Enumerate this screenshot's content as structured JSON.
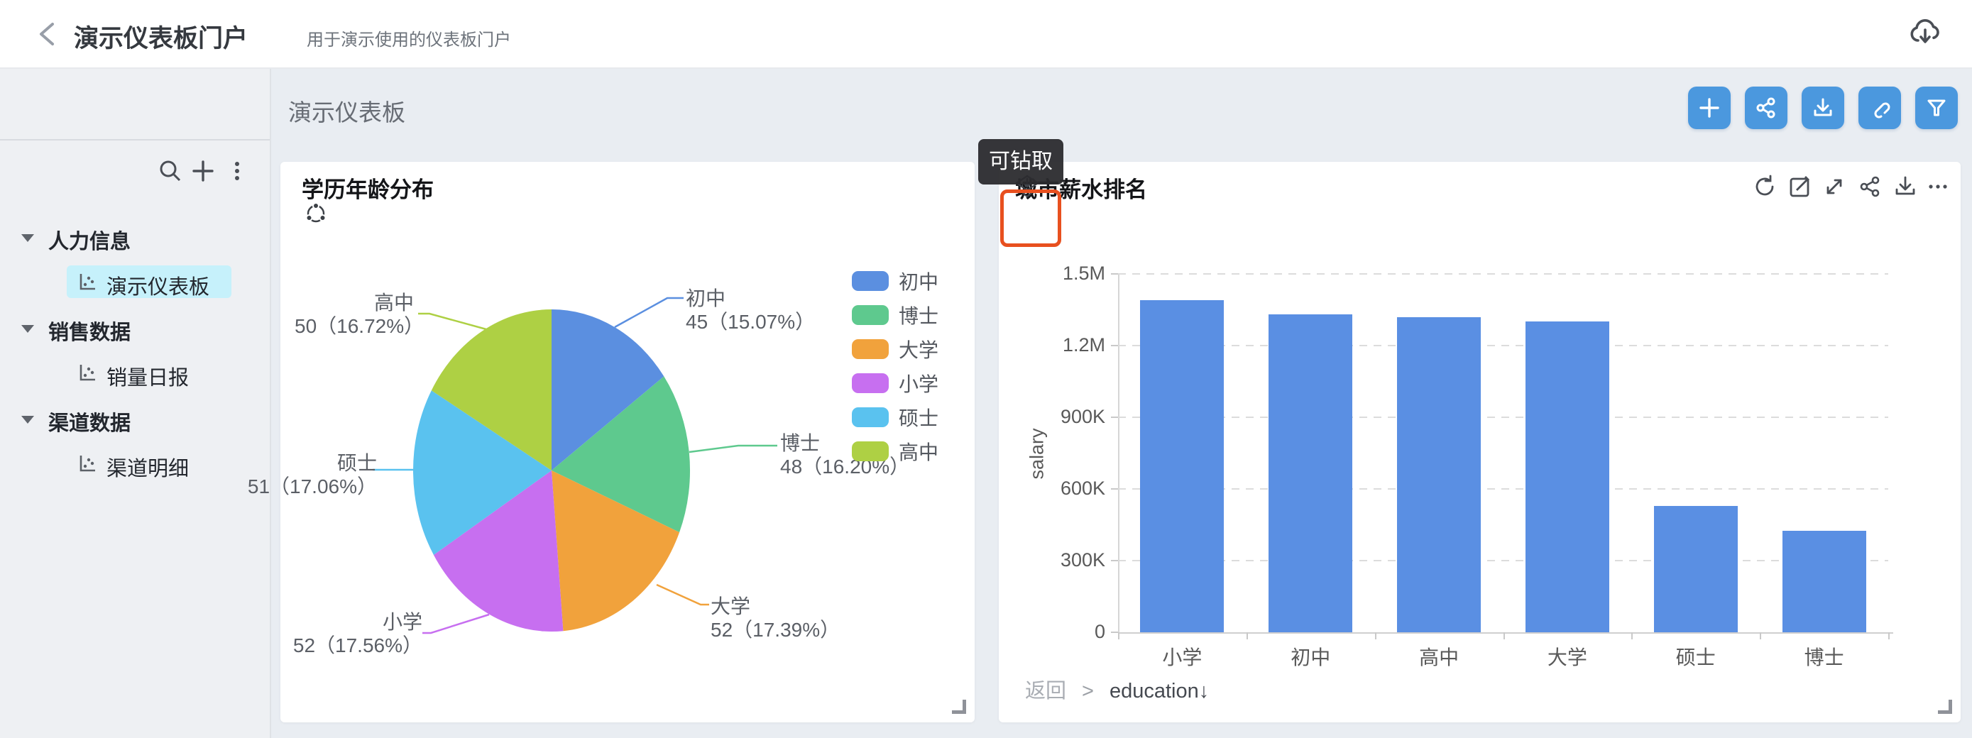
{
  "header": {
    "title": "演示仪表板门户",
    "subtitle": "用于演示使用的仪表板门户",
    "actions": [
      "back",
      "cloud-download"
    ]
  },
  "sidebar": {
    "actions": [
      "search",
      "add",
      "more"
    ],
    "groups": [
      {
        "label": "人力信息",
        "children": [
          {
            "label": "演示仪表板",
            "selected": true
          }
        ]
      },
      {
        "label": "销售数据",
        "children": [
          {
            "label": "销量日报",
            "selected": false
          }
        ]
      },
      {
        "label": "渠道数据",
        "children": [
          {
            "label": "渠道明细",
            "selected": false
          }
        ]
      }
    ],
    "selected_bg": "#C6F1FB"
  },
  "main": {
    "title": "演示仪表板",
    "toolbar": [
      "add",
      "share",
      "download",
      "link",
      "filter"
    ],
    "accent_color": "#4B98DE"
  },
  "tooltip": {
    "text": "可钻取"
  },
  "pie_card": {
    "title": "学历年龄分布",
    "icons": [
      "linkage"
    ]
  },
  "bar_card": {
    "title": "城市薪水排名",
    "icons": [
      "drill",
      "refresh",
      "edit",
      "expand",
      "share",
      "download",
      "more"
    ],
    "drill_highlight_color": "#E8501F",
    "footer": {
      "back": "返回",
      "separator": ">",
      "field": "education↓"
    }
  },
  "chart_data": [
    {
      "type": "pie",
      "title": "学历年龄分布",
      "slices": [
        {
          "name": "初中",
          "value": 45,
          "pct": "15.07",
          "color": "#5B8FE0"
        },
        {
          "name": "博士",
          "value": 48,
          "pct": "16.20",
          "color": "#5EC98E"
        },
        {
          "name": "大学",
          "value": 52,
          "pct": "17.39",
          "color": "#F1A23C"
        },
        {
          "name": "小学",
          "value": 52,
          "pct": "17.56",
          "color": "#C76FF0"
        },
        {
          "name": "硕士",
          "value": 51,
          "pct": "17.06",
          "color": "#5AC2EF"
        },
        {
          "name": "高中",
          "value": 50,
          "pct": "16.72",
          "color": "#AED044"
        }
      ],
      "legend": [
        "初中",
        "博士",
        "大学",
        "小学",
        "硕士",
        "高中"
      ],
      "legend_position": "right",
      "label_format": "value（pct%）"
    },
    {
      "type": "bar",
      "title": "城市薪水排名",
      "categories": [
        "小学",
        "初中",
        "高中",
        "大学",
        "硕士",
        "博士"
      ],
      "values": [
        1390000,
        1330000,
        1320000,
        1300000,
        530000,
        425000
      ],
      "xlabel": "",
      "ylabel": "salary",
      "yticks": [
        "0",
        "300K",
        "600K",
        "900K",
        "1.2M",
        "1.5M"
      ],
      "ylim": [
        0,
        1500000
      ],
      "grid": "dashed-horizontal",
      "bar_color": "#5A8FE3"
    }
  ]
}
